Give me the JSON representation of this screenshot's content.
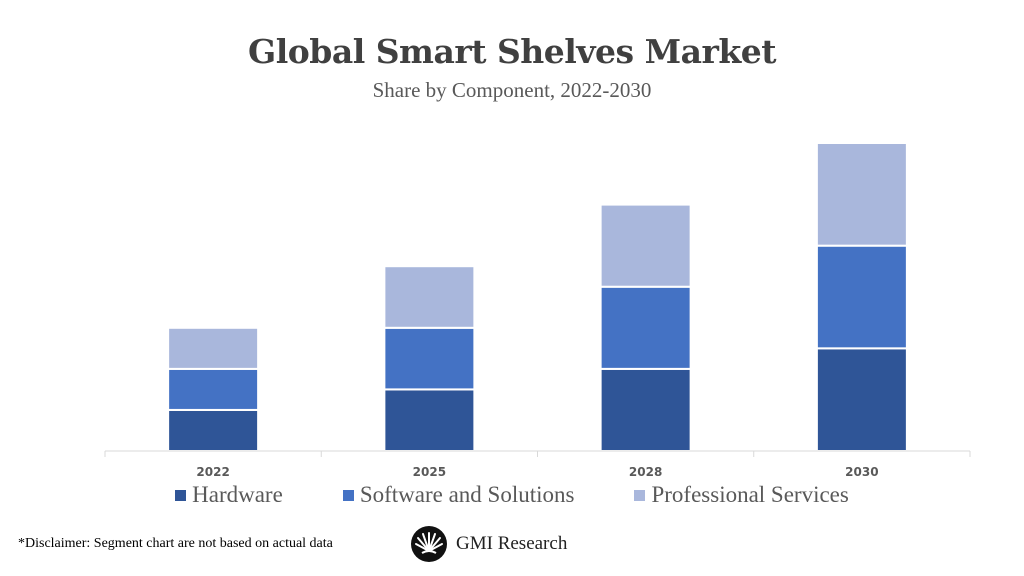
{
  "chart_data": {
    "type": "bar",
    "stacked": true,
    "title": "Global Smart Shelves Market",
    "subtitle": "Share by Component, 2022-2030",
    "categories": [
      "2022",
      "2025",
      "2028",
      "2030"
    ],
    "series": [
      {
        "name": "Hardware",
        "color": "#2f5597",
        "values": [
          2,
          3,
          4,
          5
        ]
      },
      {
        "name": "Software and Solutions",
        "color": "#4472c4",
        "values": [
          2,
          3,
          4,
          5
        ]
      },
      {
        "name": "Professional Services",
        "color": "#a9b7dc",
        "values": [
          2,
          3,
          4,
          5
        ]
      }
    ],
    "ylim": [
      0,
      15
    ],
    "y_axis_shown": false,
    "grid": false,
    "legend_placement": "bottom"
  },
  "footer": {
    "disclaimer": "*Disclaimer:  Segment chart are not based on actual data",
    "logo_text": "GMI Research"
  }
}
